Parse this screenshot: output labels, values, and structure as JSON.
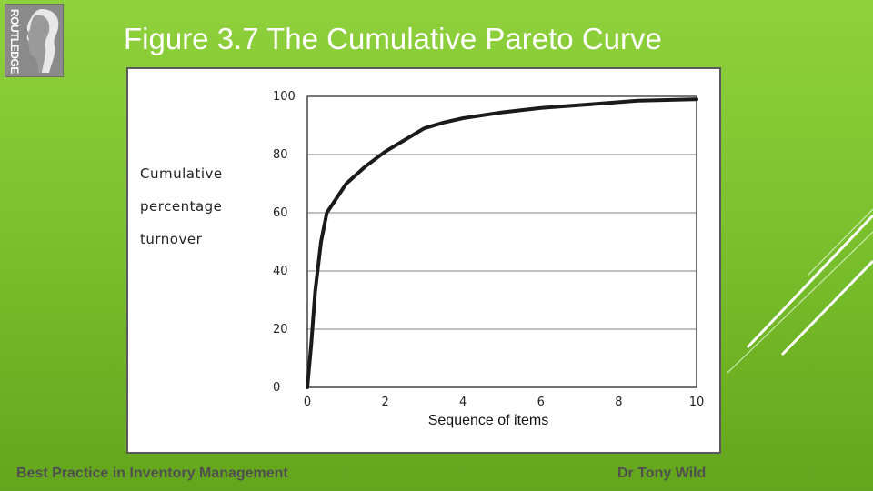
{
  "slide": {
    "logo_text": "ROUTLEDGE",
    "title": "Figure 3.7 The Cumulative Pareto Curve",
    "footer_left": "Best Practice in Inventory Management",
    "footer_right": "Dr Tony Wild"
  },
  "colors": {
    "background": "#7cc22e",
    "curve": "#1a1a1a",
    "panel": "#ffffff"
  },
  "chart_data": {
    "type": "line",
    "title": "",
    "xlabel": "Sequence of items",
    "ylabel_lines": [
      "Cumulative",
      "percentage",
      "turnover"
    ],
    "xlim": [
      0,
      10
    ],
    "ylim": [
      0,
      100
    ],
    "x_ticks": [
      "0",
      "2",
      "4",
      "6",
      "8",
      "10"
    ],
    "y_ticks": [
      "0",
      "20",
      "40",
      "60",
      "80",
      "100"
    ],
    "grid": "horizontal",
    "series": [
      {
        "x": [
          0,
          0.1,
          0.2,
          0.35,
          0.5,
          0.75,
          1.0,
          1.5,
          2.0,
          2.5,
          3.0,
          3.5,
          4.0,
          5.0,
          6.0,
          7.0,
          8.0,
          8.5,
          9.0,
          10.0
        ],
        "y": [
          0,
          15,
          33,
          50,
          60,
          65,
          70,
          76,
          81,
          85,
          89,
          91,
          92.5,
          94.5,
          96,
          97,
          98,
          98.5,
          98.7,
          99
        ]
      }
    ]
  }
}
